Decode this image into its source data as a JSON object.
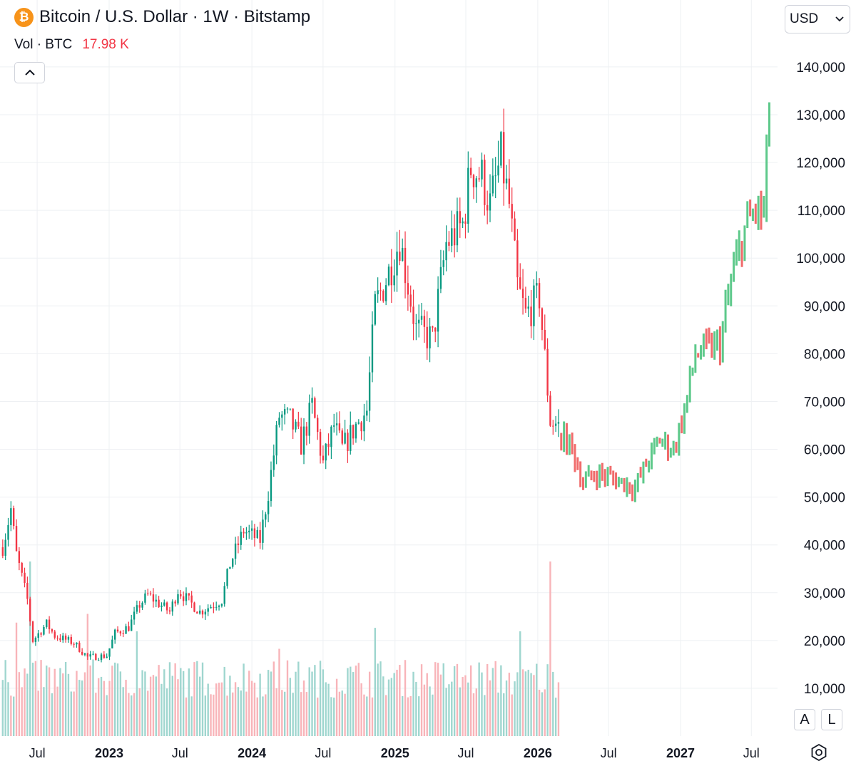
{
  "header": {
    "title": "Bitcoin / U.S. Dollar · 1W · Bitstamp",
    "logo_glyph": "₿",
    "vol_label": "Vol · BTC",
    "vol_value": "17.98 K",
    "currency": "USD"
  },
  "buttons": {
    "auto_scale": "A",
    "log_scale": "L"
  },
  "colors": {
    "up": "#089981",
    "down": "#f23645",
    "projection_up": "#5dc98a",
    "projection_down": "#f06b6b",
    "vol_up": "#9fd6cf",
    "vol_down": "#f8b4b9",
    "btc_orange": "#f7931a"
  },
  "chart_data": {
    "type": "candlestick",
    "title": "Bitcoin / U.S. Dollar · 1W · Bitstamp",
    "y_ticks": [
      10000,
      20000,
      30000,
      40000,
      50000,
      60000,
      70000,
      80000,
      90000,
      100000,
      110000,
      120000,
      130000,
      140000
    ],
    "y_tick_labels": [
      "10,000",
      "20,000",
      "30,000",
      "40,000",
      "50,000",
      "60,000",
      "70,000",
      "80,000",
      "90,000",
      "100,000",
      "110,000",
      "120,000",
      "130,000",
      "140,000"
    ],
    "ylim": [
      0,
      154000
    ],
    "x_ticks": [
      {
        "label": "Jul",
        "date": "2022-07-01",
        "bold": false
      },
      {
        "label": "2023",
        "date": "2023-01-01",
        "bold": true
      },
      {
        "label": "Jul",
        "date": "2023-07-01",
        "bold": false
      },
      {
        "label": "2024",
        "date": "2024-01-01",
        "bold": true
      },
      {
        "label": "Jul",
        "date": "2024-07-01",
        "bold": false
      },
      {
        "label": "2025",
        "date": "2025-01-01",
        "bold": true
      },
      {
        "label": "Jul",
        "date": "2025-07-01",
        "bold": false
      },
      {
        "label": "2026",
        "date": "2026-01-01",
        "bold": true
      },
      {
        "label": "Jul",
        "date": "2026-07-01",
        "bold": false
      },
      {
        "label": "2027",
        "date": "2027-01-01",
        "bold": true
      },
      {
        "label": "Jul",
        "date": "2027-07-01",
        "bold": false
      }
    ],
    "x_range": [
      "2022-03-28",
      "2027-09-06"
    ],
    "grid": true,
    "weekly_closes": {
      "start": "2022-04-04",
      "points": [
        [
          "2022-04-04",
          39500
        ],
        [
          "2022-04-25",
          47500
        ],
        [
          "2022-05-09",
          38000
        ],
        [
          "2022-06-06",
          28500
        ],
        [
          "2022-06-20",
          20000
        ],
        [
          "2022-07-25",
          23500
        ],
        [
          "2022-08-15",
          21000
        ],
        [
          "2022-10-03",
          19500
        ],
        [
          "2022-11-07",
          16500
        ],
        [
          "2022-12-26",
          16800
        ],
        [
          "2023-01-16",
          21500
        ],
        [
          "2023-02-20",
          22800
        ],
        [
          "2023-03-20",
          27500
        ],
        [
          "2023-04-10",
          29500
        ],
        [
          "2023-06-05",
          26000
        ],
        [
          "2023-06-26",
          30500
        ],
        [
          "2023-08-21",
          26000
        ],
        [
          "2023-10-16",
          28500
        ],
        [
          "2023-11-06",
          36000
        ],
        [
          "2023-12-11",
          43000
        ],
        [
          "2024-01-22",
          41000
        ],
        [
          "2024-02-12",
          51000
        ],
        [
          "2024-03-11",
          67000
        ],
        [
          "2024-04-08",
          66000
        ],
        [
          "2024-05-06",
          61000
        ],
        [
          "2024-06-03",
          69000
        ],
        [
          "2024-07-01",
          57000
        ],
        [
          "2024-07-29",
          65000
        ],
        [
          "2024-08-19",
          60000
        ],
        [
          "2024-09-23",
          65000
        ],
        [
          "2024-10-21",
          68000
        ],
        [
          "2024-11-11",
          90000
        ],
        [
          "2024-12-16",
          97000
        ],
        [
          "2025-01-13",
          104000
        ],
        [
          "2025-02-24",
          85000
        ],
        [
          "2025-04-07",
          83000
        ],
        [
          "2025-05-12",
          103000
        ],
        [
          "2025-06-23",
          107000
        ],
        [
          "2025-07-14",
          119000
        ],
        [
          "2025-08-11",
          117000
        ],
        [
          "2025-09-01",
          111000
        ],
        [
          "2025-09-29",
          121000
        ],
        [
          "2025-10-20",
          111000
        ],
        [
          "2025-11-10",
          94000
        ],
        [
          "2025-12-01",
          88000
        ],
        [
          "2026-01-05",
          92000
        ],
        [
          "2026-02-02",
          66000
        ],
        [
          "2026-02-23",
          65000
        ]
      ]
    },
    "projection": {
      "points": [
        [
          "2026-03-02",
          63000
        ],
        [
          "2026-03-30",
          60000
        ],
        [
          "2026-04-27",
          53000
        ],
        [
          "2026-06-01",
          55000
        ],
        [
          "2026-07-06",
          54000
        ],
        [
          "2026-08-10",
          53000
        ],
        [
          "2026-09-07",
          52000
        ],
        [
          "2026-10-12",
          58000
        ],
        [
          "2026-11-09",
          62000
        ],
        [
          "2026-12-14",
          60000
        ],
        [
          "2027-01-11",
          68000
        ],
        [
          "2027-02-08",
          80000
        ],
        [
          "2027-03-15",
          81000
        ],
        [
          "2027-04-12",
          82000
        ],
        [
          "2027-05-10",
          95000
        ],
        [
          "2027-06-14",
          106000
        ],
        [
          "2027-07-12",
          110000
        ],
        [
          "2027-08-02",
          109000
        ],
        [
          "2027-08-16",
          133000
        ]
      ]
    },
    "volume_end": "2026-02-23",
    "volume_spikes": [
      {
        "date": "2022-05-09",
        "value": 0.65
      },
      {
        "date": "2022-06-13",
        "value": 1.0
      },
      {
        "date": "2022-11-07",
        "value": 0.7
      },
      {
        "date": "2023-03-13",
        "value": 0.6
      },
      {
        "date": "2024-03-11",
        "value": 0.5
      },
      {
        "date": "2024-11-11",
        "value": 0.62
      },
      {
        "date": "2025-11-17",
        "value": 0.6
      },
      {
        "date": "2026-02-02",
        "value": 1.0
      }
    ]
  }
}
